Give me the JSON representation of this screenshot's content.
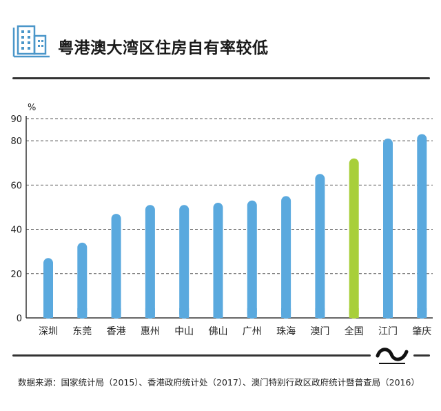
{
  "header": {
    "title": "粤港澳大湾区住房自有率较低",
    "icon": "building-icon"
  },
  "chart_data": {
    "type": "bar",
    "title": "粤港澳大湾区住房自有率较低",
    "ylabel": "%",
    "categories": [
      "深圳",
      "东莞",
      "香港",
      "惠州",
      "中山",
      "佛山",
      "广州",
      "珠海",
      "澳门",
      "全国",
      "江门",
      "肇庆"
    ],
    "values": [
      27,
      34,
      47,
      51,
      51,
      52,
      53,
      55,
      65,
      72,
      81,
      83
    ],
    "ylim": [
      0,
      90
    ],
    "yticks": [
      0,
      20,
      40,
      60,
      80,
      90
    ],
    "grid": true,
    "highlight_category": "全国"
  },
  "colors": {
    "bar": "#5aa9de",
    "highlight_bar": "#a8cf3a",
    "icon": "#4a96c9",
    "grid": "#555555"
  },
  "footer": {
    "source": "数据来源：国家统计局（2015）、香港政府统计处（2017）、澳门特别行政区政府统计暨普查局（2016）",
    "logo": "publisher-logo"
  }
}
